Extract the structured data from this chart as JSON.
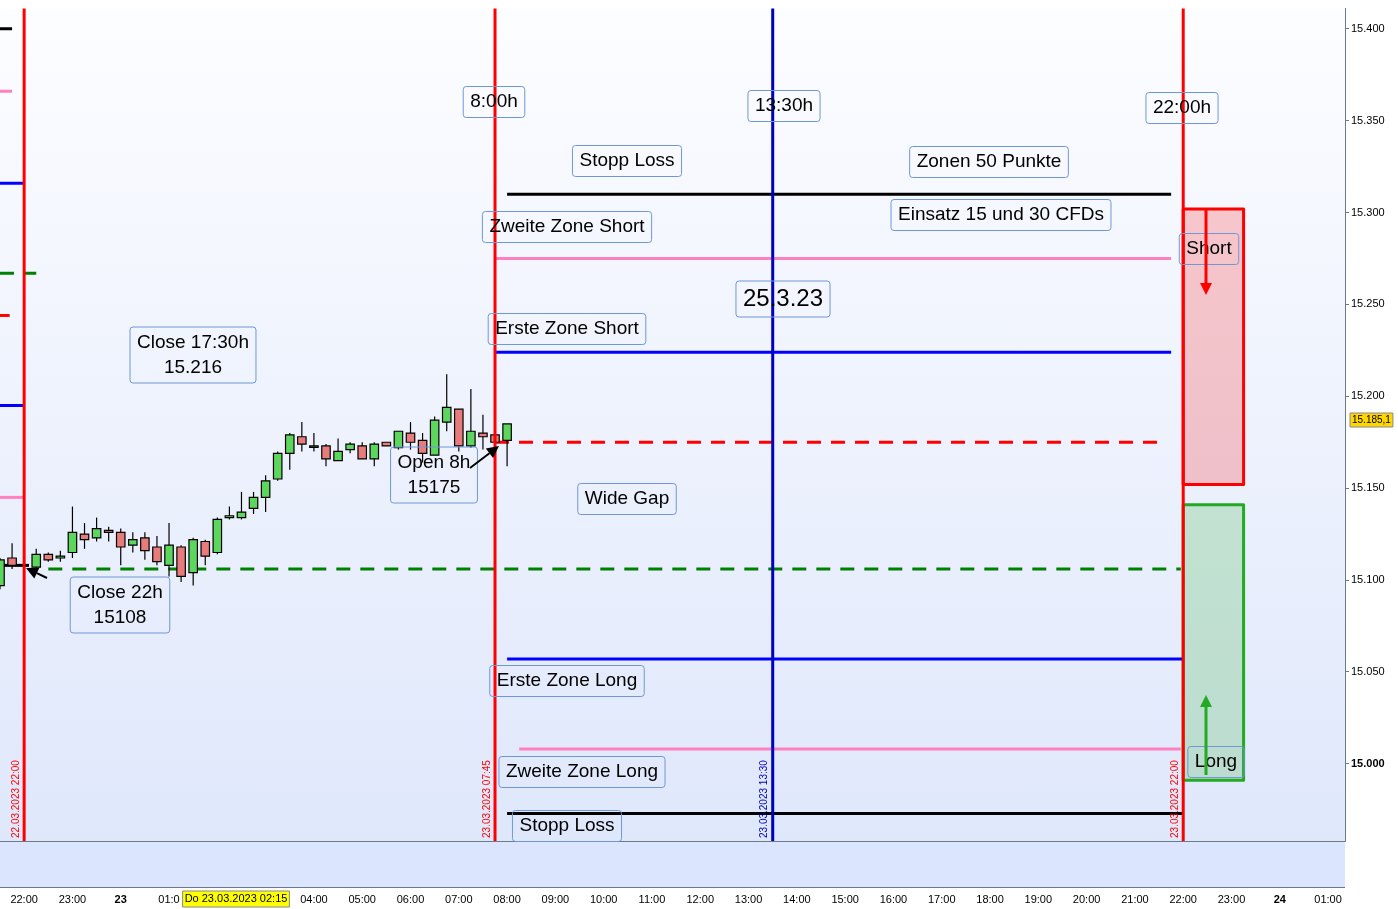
{
  "chart_data": {
    "type": "candlestick",
    "x": [
      "2023-03-22T21:30",
      "2023-03-22T21:45",
      "2023-03-22T22:15",
      "2023-03-22T22:30",
      "2023-03-22T22:45",
      "2023-03-22T23:00",
      "2023-03-22T23:15",
      "2023-03-22T23:30",
      "2023-03-22T23:45",
      "2023-03-23T00:00",
      "2023-03-23T00:15",
      "2023-03-23T00:30",
      "2023-03-23T00:45",
      "2023-03-23T01:00",
      "2023-03-23T01:15",
      "2023-03-23T01:30",
      "2023-03-23T01:45",
      "2023-03-23T02:00",
      "2023-03-23T02:15",
      "2023-03-23T02:30",
      "2023-03-23T02:45",
      "2023-03-23T03:00",
      "2023-03-23T03:15",
      "2023-03-23T03:30",
      "2023-03-23T03:45",
      "2023-03-23T04:00",
      "2023-03-23T04:15",
      "2023-03-23T04:30",
      "2023-03-23T04:45",
      "2023-03-23T05:00",
      "2023-03-23T05:15",
      "2023-03-23T05:30",
      "2023-03-23T05:45",
      "2023-03-23T06:00",
      "2023-03-23T06:15",
      "2023-03-23T06:30",
      "2023-03-23T06:45",
      "2023-03-23T07:00",
      "2023-03-23T07:15",
      "2023-03-23T07:30",
      "2023-03-23T07:45",
      "2023-03-23T08:00"
    ],
    "ohlc": [
      [
        15097,
        15112,
        15095,
        15111
      ],
      [
        15112,
        15120,
        15106,
        15108
      ],
      [
        15107,
        15117,
        15106,
        15114
      ],
      [
        15114,
        15115,
        15110,
        15111
      ],
      [
        15112,
        15116,
        15110,
        15113
      ],
      [
        15115,
        15140,
        15112,
        15126
      ],
      [
        15125,
        15131,
        15117,
        15122
      ],
      [
        15123,
        15134,
        15121,
        15128
      ],
      [
        15127,
        15129,
        15121,
        15126
      ],
      [
        15126,
        15128,
        15108,
        15118
      ],
      [
        15119,
        15126,
        15115,
        15122
      ],
      [
        15123,
        15126,
        15111,
        15116
      ],
      [
        15118,
        15124,
        15108,
        15110
      ],
      [
        15108,
        15131,
        15102,
        15119
      ],
      [
        15118,
        15119,
        15099,
        15102
      ],
      [
        15104,
        15123,
        15097,
        15122
      ],
      [
        15121,
        15122,
        15108,
        15113
      ],
      [
        15115,
        15134,
        15114,
        15133
      ],
      [
        15134,
        15140,
        15133,
        15135
      ],
      [
        15134,
        15148,
        15133,
        15137
      ],
      [
        15139,
        15148,
        15136,
        15145
      ],
      [
        15145,
        15157,
        15137,
        15154
      ],
      [
        15155,
        15170,
        15154,
        15169
      ],
      [
        15169,
        15180,
        15160,
        15179
      ],
      [
        15178,
        15186,
        15170,
        15174
      ],
      [
        15173,
        15180,
        15170,
        15173
      ],
      [
        15173,
        15174,
        15162,
        15166
      ],
      [
        15165,
        15177,
        15165,
        15170
      ],
      [
        15171,
        15175,
        15169,
        15174
      ],
      [
        15173,
        15175,
        15166,
        15166
      ],
      [
        15166,
        15175,
        15162,
        15174
      ],
      [
        15175,
        15175,
        15173,
        15173
      ],
      [
        15172,
        15181,
        15171,
        15181
      ],
      [
        15180,
        15186,
        15171,
        15175
      ],
      [
        15176,
        15180,
        15164,
        15169
      ],
      [
        15168,
        15189,
        15168,
        15187
      ],
      [
        15186,
        15212,
        15181,
        15194
      ],
      [
        15193,
        15193,
        15170,
        15173
      ],
      [
        15173,
        15204,
        15172,
        15181
      ],
      [
        15180,
        15190,
        15171,
        15178
      ],
      [
        15179,
        15179,
        15175,
        15175
      ],
      [
        15176,
        15185,
        15162,
        15185
      ]
    ],
    "colors": [
      "#5cd65c",
      "#e87c7c",
      "#5cd65c",
      "#e87c7c",
      "#5cd65c",
      "#5cd65c",
      "#e87c7c",
      "#5cd65c",
      "#e87c7c",
      "#e87c7c",
      "#5cd65c",
      "#e87c7c",
      "#e87c7c",
      "#5cd65c",
      "#e87c7c",
      "#5cd65c",
      "#e87c7c",
      "#5cd65c",
      "#5cd65c",
      "#5cd65c",
      "#5cd65c",
      "#5cd65c",
      "#5cd65c",
      "#5cd65c",
      "#e87c7c",
      "#5cd65c",
      "#e87c7c",
      "#5cd65c",
      "#5cd65c",
      "#e87c7c",
      "#5cd65c",
      "#e87c7c",
      "#5cd65c",
      "#e87c7c",
      "#e87c7c",
      "#5cd65c",
      "#5cd65c",
      "#e87c7c",
      "#5cd65c",
      "#e87c7c",
      "#e87c7c",
      "#5cd65c"
    ],
    "series": [
      {
        "type": "line",
        "x": [
          "2023-03-22T21:30",
          "2023-03-22T21:45"
        ],
        "values": [
          15400,
          15400
        ],
        "color": "#000000"
      },
      {
        "type": "line",
        "x": [
          "2023-03-22T21:30",
          "2023-03-22T21:45"
        ],
        "values": [
          15366,
          15366
        ],
        "color": "#ff80c0"
      },
      {
        "type": "line",
        "x": [
          "2023-03-22T21:30",
          "2023-03-22T22:00"
        ],
        "values": [
          15316,
          15316
        ],
        "color": "#0000ff"
      },
      {
        "type": "line",
        "x": [
          "2023-03-22T21:30",
          "2023-03-22T22:15"
        ],
        "values": [
          15267,
          15267
        ],
        "color": "#008000",
        "line_style": "dashed"
      },
      {
        "type": "line",
        "x": [
          "2023-03-22T21:30",
          "2023-03-22T21:42"
        ],
        "values": [
          15244,
          15244
        ],
        "color": "#ff0000"
      },
      {
        "type": "line",
        "x": [
          "2023-03-22T21:30",
          "2023-03-22T22:00"
        ],
        "values": [
          15195,
          15195
        ],
        "color": "#0000ff"
      },
      {
        "type": "line",
        "x": [
          "2023-03-22T21:30",
          "2023-03-22T22:00"
        ],
        "values": [
          15145,
          15145
        ],
        "color": "#ff80c0"
      },
      {
        "type": "line",
        "x": [
          "2023-03-22T21:30",
          "2023-03-22T22:06"
        ],
        "values": [
          15108,
          15108
        ],
        "color": "#000000"
      },
      {
        "type": "line",
        "x": [
          "2023-03-23T08:00",
          "2023-03-23T21:45"
        ],
        "values": [
          15310,
          15310
        ],
        "color": "#000000"
      },
      {
        "type": "line",
        "x": [
          "2023-03-23T07:45",
          "2023-03-23T21:45"
        ],
        "values": [
          15275,
          15275
        ],
        "color": "#ff80c0"
      },
      {
        "type": "line",
        "x": [
          "2023-03-23T07:45",
          "2023-03-23T21:45"
        ],
        "values": [
          15224,
          15224
        ],
        "color": "#0000ff"
      },
      {
        "type": "line",
        "x": [
          "2023-03-23T07:45",
          "2023-03-23T21:30"
        ],
        "values": [
          15175,
          15175
        ],
        "color": "#ff0000",
        "line_style": "dashed"
      },
      {
        "type": "line",
        "x": [
          "2023-03-22T22:30",
          "2023-03-23T21:57"
        ],
        "values": [
          15106,
          15106
        ],
        "color": "#008000",
        "line_style": "dashed"
      },
      {
        "type": "line",
        "x": [
          "2023-03-23T08:00",
          "2023-03-23T22:00"
        ],
        "values": [
          15057,
          15057
        ],
        "color": "#0000ff"
      },
      {
        "type": "line",
        "x": [
          "2023-03-23T08:15",
          "2023-03-23T21:57"
        ],
        "values": [
          15008,
          15008
        ],
        "color": "#ff80c0"
      },
      {
        "type": "line",
        "x": [
          "2023-03-23T08:00",
          "2023-03-23T22:00"
        ],
        "values": [
          14973,
          14973
        ],
        "color": "#000000"
      },
      {
        "type": "area",
        "x": [
          "2023-03-23T22:00",
          "2023-03-23T23:15"
        ],
        "values": [
          null,
          null
        ],
        "lower": [
          15152,
          15152
        ],
        "upper": [
          15302,
          15302
        ],
        "color": "#ff0000"
      },
      {
        "type": "area",
        "x": [
          "2023-03-23T22:00",
          "2023-03-23T23:15"
        ],
        "values": [
          null,
          null
        ],
        "lower": [
          14991,
          14991
        ],
        "upper": [
          15141,
          15141
        ],
        "color": "#22aa22"
      }
    ],
    "ref_lines": [
      {
        "axis": "x",
        "value": "2023-03-22T22:00",
        "label": "22.03.2023 22:00",
        "color": "#ff0000"
      },
      {
        "axis": "x",
        "value": "2023-03-23T07:45",
        "label": "23.03.2023 07:45",
        "color": "#ff0000"
      },
      {
        "axis": "x",
        "value": "2023-03-23T13:30",
        "label": "23.03.2023 13:30",
        "color": "#0000c0"
      },
      {
        "axis": "x",
        "value": "2023-03-23T22:00",
        "label": "23.03.2023 22:00",
        "color": "#ff0000"
      }
    ],
    "annotations": [
      "8:00h",
      "13:30h",
      "22:00h",
      "Stopp Loss",
      "Zonen 50 Punkte",
      "Einsatz 15 und 30 CFDs",
      "Zweite Zone Short",
      "Short",
      "25.3.23",
      "Erste Zone Short",
      "Close 17:30h\n15.216",
      "Open 8h\n15175",
      "Wide Gap",
      "Close 22h\n15108",
      "Erste Zone Long",
      "Zweite Zone Long",
      "Long",
      "Stopp Loss",
      "Do 23.03.2023 02:15",
      "15.185,1"
    ],
    "xlim": [
      "2023-03-22T21:30",
      "2023-03-24T01:21"
    ],
    "xticks": [
      {
        "value": "2023-03-22T22:00",
        "label": "22:00"
      },
      {
        "value": "2023-03-22T23:00",
        "label": "23:00"
      },
      {
        "value": "2023-03-23T00:00",
        "label": "23"
      },
      {
        "value": "2023-03-23T01:00",
        "label": "01:0"
      },
      {
        "value": "2023-03-23T04:00",
        "label": "04:00"
      },
      {
        "value": "2023-03-23T05:00",
        "label": "05:00"
      },
      {
        "value": "2023-03-23T06:00",
        "label": "06:00"
      },
      {
        "value": "2023-03-23T07:00",
        "label": "07:00"
      },
      {
        "value": "2023-03-23T08:00",
        "label": "08:00"
      },
      {
        "value": "2023-03-23T09:00",
        "label": "09:00"
      },
      {
        "value": "2023-03-23T10:00",
        "label": "10:00"
      },
      {
        "value": "2023-03-23T11:00",
        "label": "11:00"
      },
      {
        "value": "2023-03-23T12:00",
        "label": "12:00"
      },
      {
        "value": "2023-03-23T13:00",
        "label": "13:00"
      },
      {
        "value": "2023-03-23T14:00",
        "label": "14:00"
      },
      {
        "value": "2023-03-23T15:00",
        "label": "15:00"
      },
      {
        "value": "2023-03-23T16:00",
        "label": "16:00"
      },
      {
        "value": "2023-03-23T17:00",
        "label": "17:00"
      },
      {
        "value": "2023-03-23T18:00",
        "label": "18:00"
      },
      {
        "value": "2023-03-23T19:00",
        "label": "19:00"
      },
      {
        "value": "2023-03-23T20:00",
        "label": "20:00"
      },
      {
        "value": "2023-03-23T21:00",
        "label": "21:00"
      },
      {
        "value": "2023-03-23T22:00",
        "label": "22:00"
      },
      {
        "value": "2023-03-23T23:00",
        "label": "23:00"
      },
      {
        "value": "2023-03-24T00:00",
        "label": "24"
      },
      {
        "value": "2023-03-24T01:00",
        "label": "01:00"
      }
    ],
    "ylim": [
      14958,
      15411
    ],
    "yticks": [
      {
        "value": 15000,
        "label": "15.000"
      },
      {
        "value": 15050,
        "label": "15.050"
      },
      {
        "value": 15100,
        "label": "15.100"
      },
      {
        "value": 15150,
        "label": "15.150"
      },
      {
        "value": 15200,
        "label": "15.200"
      },
      {
        "value": 15250,
        "label": "15.250"
      },
      {
        "value": 15300,
        "label": "15.300"
      },
      {
        "value": 15350,
        "label": "15.350"
      },
      {
        "value": 15400,
        "label": "15.400"
      }
    ]
  }
}
